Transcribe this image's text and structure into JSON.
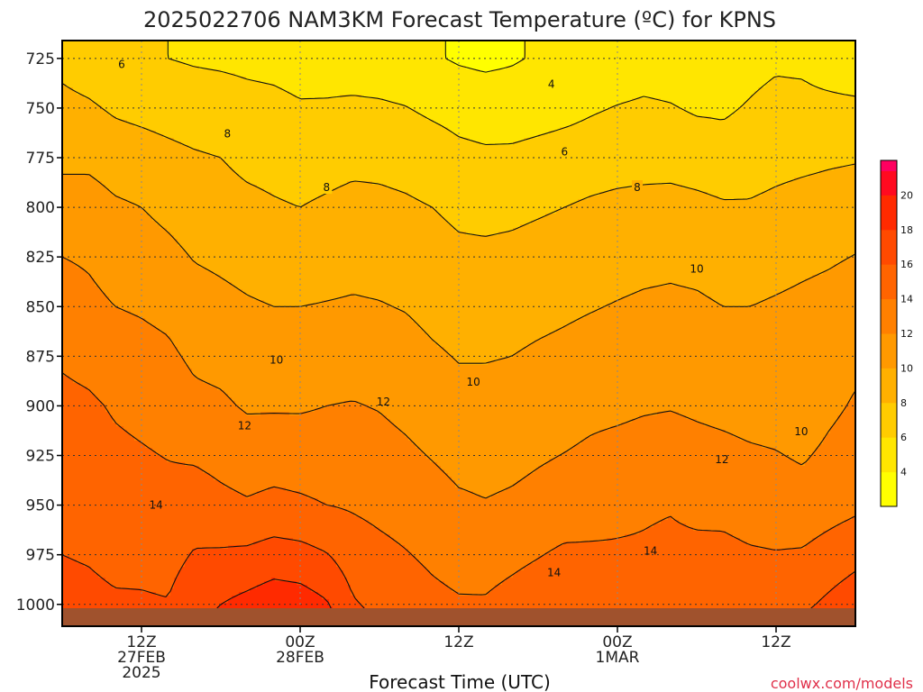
{
  "chart_data": {
    "type": "heatmap",
    "title": "2025022706 NAM3KM Forecast Temperature (ºC) for KPNS",
    "xlabel": "Forecast Time (UTC)",
    "ylabel": "",
    "credit": "coolwx.com/models",
    "x_ticks": [
      {
        "hour": 12,
        "lines": [
          "12Z",
          "27FEB",
          "2025"
        ]
      },
      {
        "hour": 24,
        "lines": [
          "00Z",
          "28FEB"
        ]
      },
      {
        "hour": 36,
        "lines": [
          "12Z"
        ]
      },
      {
        "hour": 48,
        "lines": [
          "00Z",
          "1MAR"
        ]
      },
      {
        "hour": 60,
        "lines": [
          "12Z"
        ]
      }
    ],
    "xlim": [
      6,
      66
    ],
    "ylim": [
      1011,
      716
    ],
    "y_ticks": [
      {
        "value": 725,
        "label": "725"
      },
      {
        "value": 750,
        "label": "750"
      },
      {
        "value": 775,
        "label": "775"
      },
      {
        "value": 800,
        "label": "800"
      },
      {
        "value": 825,
        "label": "825"
      },
      {
        "value": 850,
        "label": "850"
      },
      {
        "value": 875,
        "label": "875"
      },
      {
        "value": 900,
        "label": "900"
      },
      {
        "value": 925,
        "label": "925"
      },
      {
        "value": 950,
        "label": "950"
      },
      {
        "value": 975,
        "label": "975"
      },
      {
        "value": 1000,
        "label": "1000"
      }
    ],
    "grid": true,
    "colorbar": {
      "levels": [
        2,
        4,
        6,
        8,
        10,
        12,
        14,
        16,
        18,
        20,
        22
      ],
      "labels": [
        "4",
        "6",
        "8",
        "10",
        "12",
        "14",
        "16",
        "18",
        "20"
      ],
      "colors": [
        "#ffff00",
        "#ffe600",
        "#ffcc00",
        "#ffb000",
        "#ff9900",
        "#ff8000",
        "#ff6400",
        "#ff4a00",
        "#ff2a00",
        "#ff0a20"
      ],
      "max_color": "#ff0060"
    },
    "ground_color": "#a0522d",
    "contour_labels": [
      {
        "text": "6",
        "x": 10.5,
        "y": 728
      },
      {
        "text": "4",
        "x": 43,
        "y": 738
      },
      {
        "text": "8",
        "x": 18.5,
        "y": 763
      },
      {
        "text": "6",
        "x": 44,
        "y": 772
      },
      {
        "text": "8",
        "x": 26,
        "y": 790
      },
      {
        "text": "8",
        "x": 49.5,
        "y": 790
      },
      {
        "text": "10",
        "x": 54,
        "y": 831
      },
      {
        "text": "10",
        "x": 22.2,
        "y": 877
      },
      {
        "text": "10",
        "x": 37.1,
        "y": 888
      },
      {
        "text": "12",
        "x": 30.3,
        "y": 898
      },
      {
        "text": "12",
        "x": 19.8,
        "y": 910
      },
      {
        "text": "10",
        "x": 61.9,
        "y": 913
      },
      {
        "text": "12",
        "x": 55.9,
        "y": 927
      },
      {
        "text": "14",
        "x": 13.1,
        "y": 950
      },
      {
        "text": "14",
        "x": 50.5,
        "y": 973
      },
      {
        "text": "14",
        "x": 43.2,
        "y": 984
      }
    ],
    "profiles": [
      {
        "hour": 6,
        "values": [
          [
            725,
            7.5
          ],
          [
            775,
            9.5
          ],
          [
            800,
            11.0
          ],
          [
            850,
            13.0
          ],
          [
            900,
            14.5
          ],
          [
            1000,
            16.5
          ],
          [
            1011,
            17.0
          ]
        ]
      },
      {
        "hour": 8,
        "values": [
          [
            725,
            7.0
          ],
          [
            775,
            9.5
          ],
          [
            800,
            11.0
          ],
          [
            850,
            12.5
          ],
          [
            900,
            14.3
          ],
          [
            1000,
            16.4
          ],
          [
            1011,
            16.8
          ]
        ]
      },
      {
        "hour": 10,
        "values": [
          [
            725,
            6.5
          ],
          [
            775,
            9.0
          ],
          [
            800,
            10.3
          ],
          [
            850,
            12.0
          ],
          [
            900,
            13.8
          ],
          [
            1000,
            16.2
          ],
          [
            1011,
            16.7
          ]
        ]
      },
      {
        "hour": 12,
        "values": [
          [
            725,
            6.2
          ],
          [
            775,
            8.8
          ],
          [
            800,
            10.0
          ],
          [
            850,
            11.8
          ],
          [
            900,
            13.5
          ],
          [
            1000,
            16.2
          ],
          [
            1011,
            16.7
          ]
        ]
      },
      {
        "hour": 14,
        "values": [
          [
            725,
            6.0
          ],
          [
            775,
            8.5
          ],
          [
            800,
            9.5
          ],
          [
            850,
            11.5
          ],
          [
            900,
            13.2
          ],
          [
            1000,
            16.1
          ],
          [
            1011,
            16.8
          ]
        ]
      },
      {
        "hour": 16,
        "values": [
          [
            725,
            5.8
          ],
          [
            775,
            8.2
          ],
          [
            800,
            9.0
          ],
          [
            850,
            10.8
          ],
          [
            900,
            12.5
          ],
          [
            960,
            15.5
          ],
          [
            1000,
            17.2
          ],
          [
            1011,
            17.7
          ]
        ]
      },
      {
        "hour": 18,
        "values": [
          [
            725,
            5.7
          ],
          [
            775,
            8.0
          ],
          [
            800,
            8.8
          ],
          [
            850,
            10.5
          ],
          [
            900,
            12.3
          ],
          [
            950,
            14.5
          ],
          [
            1000,
            18.0
          ],
          [
            1011,
            18.7
          ]
        ]
      },
      {
        "hour": 20,
        "values": [
          [
            725,
            5.6
          ],
          [
            775,
            7.5
          ],
          [
            800,
            8.5
          ],
          [
            850,
            10.2
          ],
          [
            900,
            11.8
          ],
          [
            950,
            14.2
          ],
          [
            1000,
            18.6
          ],
          [
            1011,
            19.8
          ]
        ]
      },
      {
        "hour": 22,
        "values": [
          [
            725,
            5.5
          ],
          [
            760,
            6.8
          ],
          [
            800,
            8.2
          ],
          [
            850,
            10.0
          ],
          [
            900,
            11.8
          ],
          [
            950,
            14.5
          ],
          [
            1000,
            19.2
          ],
          [
            1011,
            20.6
          ]
        ]
      },
      {
        "hour": 24,
        "values": [
          [
            725,
            5.3
          ],
          [
            760,
            6.5
          ],
          [
            800,
            8.0
          ],
          [
            850,
            10.0
          ],
          [
            900,
            11.8
          ],
          [
            950,
            14.3
          ],
          [
            1000,
            19.0
          ],
          [
            1011,
            20.4
          ]
        ]
      },
      {
        "hour": 26,
        "values": [
          [
            725,
            5.2
          ],
          [
            760,
            6.6
          ],
          [
            800,
            8.3
          ],
          [
            850,
            10.1
          ],
          [
            900,
            12.0
          ],
          [
            950,
            14.0
          ],
          [
            1000,
            18.2
          ],
          [
            1011,
            19.0
          ]
        ]
      },
      {
        "hour": 28,
        "values": [
          [
            725,
            5.1
          ],
          [
            760,
            6.8
          ],
          [
            800,
            8.6
          ],
          [
            850,
            10.2
          ],
          [
            900,
            12.1
          ],
          [
            950,
            13.8
          ],
          [
            1000,
            16.2
          ],
          [
            1011,
            16.8
          ]
        ]
      },
      {
        "hour": 30,
        "values": [
          [
            725,
            4.9
          ],
          [
            760,
            6.8
          ],
          [
            800,
            8.5
          ],
          [
            850,
            10.1
          ],
          [
            900,
            11.9
          ],
          [
            950,
            13.5
          ],
          [
            1000,
            15.5
          ],
          [
            1011,
            16.0
          ]
        ]
      },
      {
        "hour": 32,
        "values": [
          [
            725,
            4.7
          ],
          [
            760,
            6.6
          ],
          [
            800,
            8.3
          ],
          [
            850,
            9.9
          ],
          [
            900,
            11.5
          ],
          [
            950,
            13.2
          ],
          [
            1000,
            15.0
          ],
          [
            1011,
            15.5
          ]
        ]
      },
      {
        "hour": 34,
        "values": [
          [
            725,
            4.2
          ],
          [
            760,
            6.2
          ],
          [
            800,
            8.0
          ],
          [
            850,
            9.5
          ],
          [
            900,
            11.0
          ],
          [
            950,
            12.8
          ],
          [
            1000,
            14.5
          ],
          [
            1011,
            15.0
          ]
        ]
      },
      {
        "hour": 36,
        "values": [
          [
            725,
            3.8
          ],
          [
            760,
            5.8
          ],
          [
            800,
            7.6
          ],
          [
            850,
            9.2
          ],
          [
            900,
            10.6
          ],
          [
            950,
            12.3
          ],
          [
            1000,
            14.2
          ],
          [
            1011,
            14.6
          ]
        ]
      },
      {
        "hour": 38,
        "values": [
          [
            725,
            3.6
          ],
          [
            760,
            5.6
          ],
          [
            800,
            7.5
          ],
          [
            850,
            9.2
          ],
          [
            900,
            10.6
          ],
          [
            950,
            12.1
          ],
          [
            1000,
            14.2
          ],
          [
            1011,
            14.7
          ]
        ]
      },
      {
        "hour": 40,
        "values": [
          [
            725,
            3.8
          ],
          [
            760,
            5.6
          ],
          [
            800,
            7.6
          ],
          [
            850,
            9.3
          ],
          [
            900,
            10.7
          ],
          [
            950,
            12.3
          ],
          [
            1000,
            14.7
          ],
          [
            1011,
            15.3
          ]
        ]
      },
      {
        "hour": 42,
        "values": [
          [
            725,
            4.2
          ],
          [
            760,
            5.8
          ],
          [
            800,
            7.8
          ],
          [
            850,
            9.5
          ],
          [
            900,
            11.0
          ],
          [
            950,
            12.6
          ],
          [
            1000,
            15.2
          ],
          [
            1011,
            16.0
          ]
        ]
      },
      {
        "hour": 44,
        "values": [
          [
            725,
            4.6
          ],
          [
            760,
            6.0
          ],
          [
            800,
            8.0
          ],
          [
            850,
            9.7
          ],
          [
            900,
            11.2
          ],
          [
            950,
            12.9
          ],
          [
            1000,
            15.8
          ],
          [
            1011,
            16.6
          ]
        ]
      },
      {
        "hour": 46,
        "values": [
          [
            725,
            5.0
          ],
          [
            760,
            6.2
          ],
          [
            800,
            8.3
          ],
          [
            850,
            9.9
          ],
          [
            900,
            11.5
          ],
          [
            950,
            13.2
          ],
          [
            1000,
            15.4
          ],
          [
            1011,
            16.0
          ]
        ]
      },
      {
        "hour": 48,
        "values": [
          [
            725,
            5.2
          ],
          [
            760,
            6.4
          ],
          [
            800,
            8.5
          ],
          [
            850,
            10.1
          ],
          [
            900,
            11.6
          ],
          [
            950,
            13.6
          ],
          [
            1000,
            14.8
          ],
          [
            1011,
            15.0
          ]
        ]
      },
      {
        "hour": 50,
        "values": [
          [
            725,
            5.4
          ],
          [
            760,
            6.5
          ],
          [
            800,
            8.6
          ],
          [
            850,
            10.3
          ],
          [
            900,
            11.8
          ],
          [
            950,
            13.8
          ],
          [
            1000,
            14.6
          ],
          [
            1011,
            14.8
          ]
        ]
      },
      {
        "hour": 52,
        "values": [
          [
            725,
            5.3
          ],
          [
            760,
            6.4
          ],
          [
            800,
            8.7
          ],
          [
            850,
            10.4
          ],
          [
            900,
            11.9
          ],
          [
            950,
            13.9
          ],
          [
            1000,
            14.8
          ],
          [
            1011,
            15.2
          ]
        ]
      },
      {
        "hour": 54,
        "values": [
          [
            725,
            5.0
          ],
          [
            760,
            6.2
          ],
          [
            800,
            8.5
          ],
          [
            850,
            10.3
          ],
          [
            900,
            11.7
          ],
          [
            950,
            13.6
          ],
          [
            1000,
            15.2
          ],
          [
            1011,
            15.8
          ]
        ]
      },
      {
        "hour": 56,
        "values": [
          [
            725,
            5.2
          ],
          [
            760,
            6.1
          ],
          [
            800,
            8.2
          ],
          [
            850,
            10.0
          ],
          [
            900,
            11.5
          ],
          [
            950,
            13.5
          ],
          [
            1000,
            15.4
          ],
          [
            1011,
            16.0
          ]
        ]
      },
      {
        "hour": 58,
        "values": [
          [
            725,
            5.6
          ],
          [
            760,
            6.3
          ],
          [
            800,
            8.2
          ],
          [
            850,
            10.0
          ],
          [
            900,
            11.3
          ],
          [
            950,
            13.2
          ],
          [
            1000,
            15.2
          ],
          [
            1011,
            15.9
          ]
        ]
      },
      {
        "hour": 60,
        "values": [
          [
            725,
            5.8
          ],
          [
            760,
            6.6
          ],
          [
            800,
            8.5
          ],
          [
            850,
            10.2
          ],
          [
            900,
            11.2
          ],
          [
            950,
            13.0
          ],
          [
            1000,
            15.2
          ],
          [
            1011,
            15.8
          ]
        ]
      },
      {
        "hour": 62,
        "values": [
          [
            725,
            5.7
          ],
          [
            760,
            6.7
          ],
          [
            800,
            8.8
          ],
          [
            850,
            10.4
          ],
          [
            900,
            10.8
          ],
          [
            950,
            12.8
          ],
          [
            1000,
            15.6
          ],
          [
            1011,
            16.3
          ]
        ]
      },
      {
        "hour": 64,
        "values": [
          [
            725,
            5.2
          ],
          [
            760,
            6.9
          ],
          [
            800,
            9.0
          ],
          [
            850,
            10.6
          ],
          [
            900,
            11.6
          ],
          [
            950,
            13.2
          ],
          [
            1000,
            16.4
          ],
          [
            1011,
            17.5
          ]
        ]
      },
      {
        "hour": 66,
        "values": [
          [
            725,
            4.8
          ],
          [
            760,
            7.0
          ],
          [
            800,
            9.2
          ],
          [
            850,
            10.9
          ],
          [
            900,
            12.2
          ],
          [
            950,
            13.6
          ],
          [
            1000,
            17.2
          ],
          [
            1011,
            18.2
          ]
        ]
      }
    ]
  }
}
